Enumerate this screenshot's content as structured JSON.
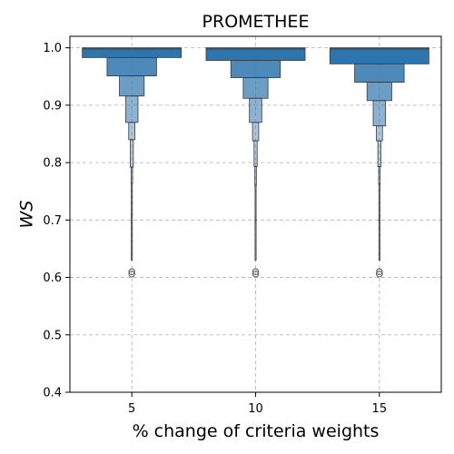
{
  "chart_data": {
    "type": "boxenplot",
    "title": "PROMETHEE",
    "xlabel": "% change of criteria weights",
    "ylabel": "WS",
    "categories": [
      "5",
      "10",
      "15"
    ],
    "yticks": [
      "0.4",
      "0.5",
      "0.6",
      "0.7",
      "0.8",
      "0.9",
      "1.0"
    ],
    "ylim": [
      0.4,
      1.02
    ],
    "grid": true,
    "series": [
      {
        "category": "5",
        "median": 0.998,
        "levels": [
          {
            "low": 0.983,
            "high": 1.0
          },
          {
            "low": 0.951,
            "high": 0.983
          },
          {
            "low": 0.916,
            "high": 0.951
          },
          {
            "low": 0.87,
            "high": 0.916
          },
          {
            "low": 0.84,
            "high": 0.87
          },
          {
            "low": 0.792,
            "high": 0.84
          },
          {
            "low": 0.765,
            "high": 0.792
          },
          {
            "low": 0.71,
            "high": 0.765
          },
          {
            "low": 0.63,
            "high": 0.71
          }
        ],
        "outliers": [
          0.61,
          0.606
        ]
      },
      {
        "category": "10",
        "median": 0.998,
        "levels": [
          {
            "low": 0.978,
            "high": 1.0
          },
          {
            "low": 0.948,
            "high": 0.978
          },
          {
            "low": 0.912,
            "high": 0.948
          },
          {
            "low": 0.87,
            "high": 0.912
          },
          {
            "low": 0.838,
            "high": 0.87
          },
          {
            "low": 0.793,
            "high": 0.838
          },
          {
            "low": 0.76,
            "high": 0.793
          },
          {
            "low": 0.7,
            "high": 0.76
          },
          {
            "low": 0.63,
            "high": 0.7
          }
        ],
        "outliers": [
          0.61,
          0.606
        ]
      },
      {
        "category": "15",
        "median": 0.998,
        "levels": [
          {
            "low": 0.972,
            "high": 1.0
          },
          {
            "low": 0.94,
            "high": 0.972
          },
          {
            "low": 0.908,
            "high": 0.94
          },
          {
            "low": 0.864,
            "high": 0.908
          },
          {
            "low": 0.838,
            "high": 0.864
          },
          {
            "low": 0.793,
            "high": 0.838
          },
          {
            "low": 0.763,
            "high": 0.793
          },
          {
            "low": 0.7,
            "high": 0.763
          },
          {
            "low": 0.63,
            "high": 0.7
          }
        ],
        "outliers": [
          0.61,
          0.606
        ]
      }
    ],
    "colors": {
      "main": "#2e75ad",
      "edge": "#3a3a3a",
      "outlier": "#6a6a6a",
      "grid": "#b0b0b0"
    }
  }
}
